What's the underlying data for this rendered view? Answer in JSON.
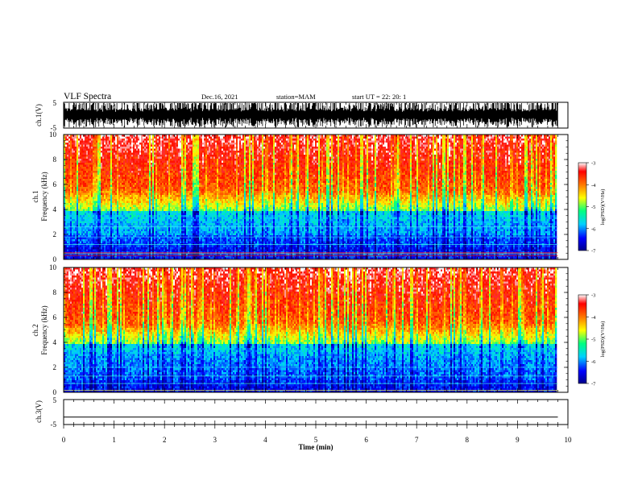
{
  "header": {
    "title": "VLF Spectra",
    "date": "Dec.16, 2021",
    "station": "station=MAM",
    "start": "start UT =  22: 20: 1"
  },
  "chart_data": [
    {
      "type": "line",
      "name": "ch1-waveform",
      "ylabel": "ch.1(V)",
      "ylim": [
        -5,
        5
      ],
      "yticks": [
        "5",
        "-5"
      ],
      "xlim": [
        0,
        10
      ]
    },
    {
      "type": "heatmap",
      "name": "ch1-spectrogram",
      "ylabel": "Frequency (kHz)",
      "ylabel_prefix": "ch.1",
      "ylim": [
        0,
        10
      ],
      "yticks": [
        "10",
        "8",
        "6",
        "4",
        "2",
        "0"
      ],
      "xlim": [
        0,
        10
      ],
      "data_xmax": 9.8,
      "colorbar": {
        "label": "log(PSD)(V²/Hz)",
        "range": [
          -7,
          -3
        ],
        "ticks": [
          "-3",
          "-4",
          "-5",
          "-6",
          "-7"
        ],
        "colors": [
          "#00008a",
          "#0000ff",
          "#00d0ff",
          "#00ff80",
          "#ffff00",
          "#ff8000",
          "#ff0000",
          "#ffffff"
        ]
      }
    },
    {
      "type": "heatmap",
      "name": "ch2-spectrogram",
      "ylabel": "Frequency (kHz)",
      "ylabel_prefix": "ch.2",
      "ylim": [
        0,
        10
      ],
      "yticks": [
        "10",
        "8",
        "6",
        "4",
        "2",
        "0"
      ],
      "xlim": [
        0,
        10
      ],
      "data_xmax": 9.8,
      "colorbar": {
        "label": "log(PSD)(V²/Hz)",
        "range": [
          -7,
          -3
        ],
        "ticks": [
          "-3",
          "-4",
          "-5",
          "-6",
          "-7"
        ],
        "colors": [
          "#00008a",
          "#0000ff",
          "#00d0ff",
          "#00ff80",
          "#ffff00",
          "#ff8000",
          "#ff0000",
          "#ffffff"
        ]
      }
    },
    {
      "type": "line",
      "name": "ch3-waveform",
      "ylabel": "ch.3(V)",
      "ylim": [
        -5,
        5
      ],
      "yticks": [
        "5",
        "-5"
      ],
      "xlim": [
        0,
        10
      ],
      "values_constant": -2
    }
  ],
  "xaxis": {
    "label": "Time (min)",
    "ticks": [
      "0",
      "1",
      "2",
      "3",
      "4",
      "5",
      "6",
      "7",
      "8",
      "9",
      "10"
    ]
  }
}
